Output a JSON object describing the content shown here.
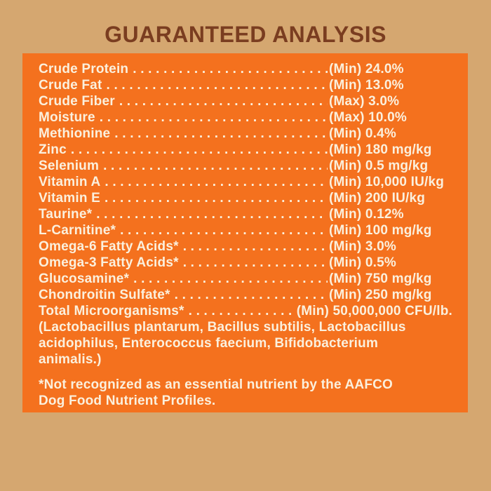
{
  "page": {
    "title": "GUARANTEED ANALYSIS",
    "colors": {
      "background": "#D5A770",
      "panel": "#F4711E",
      "title_text": "#7A3D20",
      "body_text": "#FBF0DD"
    }
  },
  "analysis": {
    "rows": [
      {
        "name": "Crude Protein",
        "limit": "(Min)",
        "value": "24.0%"
      },
      {
        "name": "Crude Fat",
        "limit": "(Min)",
        "value": "13.0%"
      },
      {
        "name": "Crude Fiber",
        "limit": "(Max)",
        "value": "3.0%"
      },
      {
        "name": "Moisture",
        "limit": "(Max)",
        "value": "10.0%"
      },
      {
        "name": "Methionine",
        "limit": "(Min)",
        "value": "0.4%"
      },
      {
        "name": "Zinc",
        "limit": "(Min)",
        "value": "180 mg/kg"
      },
      {
        "name": "Selenium",
        "limit": "(Min)",
        "value": "0.5 mg/kg"
      },
      {
        "name": "Vitamin A",
        "limit": "(Min)",
        "value": "10,000 IU/kg"
      },
      {
        "name": "Vitamin E",
        "limit": "(Min)",
        "value": "200 IU/kg"
      },
      {
        "name": "Taurine*",
        "limit": "(Min)",
        "value": "0.12%"
      },
      {
        "name": "L-Carnitine*",
        "limit": "(Min)",
        "value": "100 mg/kg"
      },
      {
        "name": "Omega-6 Fatty Acids*",
        "limit": "(Min)",
        "value": "3.0%"
      },
      {
        "name": "Omega-3 Fatty Acids*",
        "limit": "(Min)",
        "value": "0.5%"
      },
      {
        "name": "Glucosamine*",
        "limit": "(Min)",
        "value": "750 mg/kg"
      },
      {
        "name": "Chondroitin Sulfate*",
        "limit": "(Min)",
        "value": "250 mg/kg"
      },
      {
        "name": "Total Microorganisms*",
        "limit": "(Min)",
        "value": "50,000,000 CFU/lb."
      }
    ],
    "microorganisms_note_lines": [
      "(Lactobacillus plantarum, Bacillus subtilis, Lactobacillus",
      "acidophilus, Enterococcus faecium, Bifidobacterium",
      "animalis.)"
    ],
    "footnote_lines": [
      "*Not recognized as an essential nutrient by the AAFCO",
      "Dog Food Nutrient Profiles."
    ]
  }
}
